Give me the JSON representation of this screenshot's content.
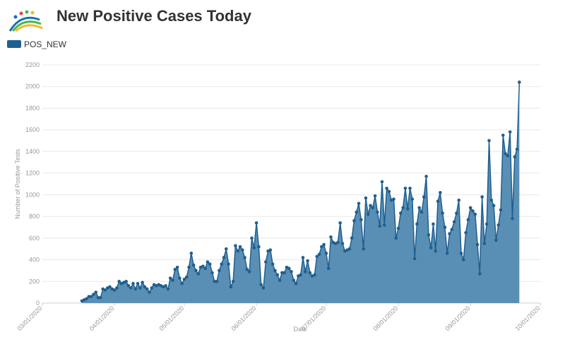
{
  "chart_data": {
    "type": "area",
    "title": "New Positive Cases Today",
    "x_label": "Date",
    "y_label": "Number of Positive Tests",
    "x": [
      "03/18/2020",
      "03/19/2020",
      "03/20/2020",
      "03/21/2020",
      "03/22/2020",
      "03/23/2020",
      "03/24/2020",
      "03/25/2020",
      "03/26/2020",
      "03/27/2020",
      "03/28/2020",
      "03/29/2020",
      "03/30/2020",
      "03/31/2020",
      "04/01/2020",
      "04/02/2020",
      "04/03/2020",
      "04/04/2020",
      "04/05/2020",
      "04/06/2020",
      "04/07/2020",
      "04/08/2020",
      "04/09/2020",
      "04/10/2020",
      "04/11/2020",
      "04/12/2020",
      "04/13/2020",
      "04/14/2020",
      "04/15/2020",
      "04/16/2020",
      "04/17/2020",
      "04/18/2020",
      "04/19/2020",
      "04/20/2020",
      "04/21/2020",
      "04/22/2020",
      "04/23/2020",
      "04/24/2020",
      "04/25/2020",
      "04/26/2020",
      "04/27/2020",
      "04/28/2020",
      "04/29/2020",
      "04/30/2020",
      "05/01/2020",
      "05/02/2020",
      "05/03/2020",
      "05/04/2020",
      "05/05/2020",
      "05/06/2020",
      "05/07/2020",
      "05/08/2020",
      "05/09/2020",
      "05/10/2020",
      "05/11/2020",
      "05/12/2020",
      "05/13/2020",
      "05/14/2020",
      "05/15/2020",
      "05/16/2020",
      "05/17/2020",
      "05/18/2020",
      "05/19/2020",
      "05/20/2020",
      "05/21/2020",
      "05/22/2020",
      "05/23/2020",
      "05/24/2020",
      "05/25/2020",
      "05/26/2020",
      "05/27/2020",
      "05/28/2020",
      "05/29/2020",
      "05/30/2020",
      "05/31/2020",
      "06/01/2020",
      "06/02/2020",
      "06/03/2020",
      "06/04/2020",
      "06/05/2020",
      "06/06/2020",
      "06/07/2020",
      "06/08/2020",
      "06/09/2020",
      "06/10/2020",
      "06/11/2020",
      "06/12/2020",
      "06/13/2020",
      "06/14/2020",
      "06/15/2020",
      "06/16/2020",
      "06/17/2020",
      "06/18/2020",
      "06/19/2020",
      "06/20/2020",
      "06/21/2020",
      "06/22/2020",
      "06/23/2020",
      "06/24/2020",
      "06/25/2020",
      "06/26/2020",
      "06/27/2020",
      "06/28/2020",
      "06/29/2020",
      "06/30/2020",
      "07/01/2020",
      "07/02/2020",
      "07/03/2020",
      "07/04/2020",
      "07/05/2020",
      "07/06/2020",
      "07/07/2020",
      "07/08/2020",
      "07/09/2020",
      "07/10/2020",
      "07/11/2020",
      "07/12/2020",
      "07/13/2020",
      "07/14/2020",
      "07/15/2020",
      "07/16/2020",
      "07/17/2020",
      "07/18/2020",
      "07/19/2020",
      "07/20/2020",
      "07/21/2020",
      "07/22/2020",
      "07/23/2020",
      "07/24/2020",
      "07/25/2020",
      "07/26/2020",
      "07/27/2020",
      "07/28/2020",
      "07/29/2020",
      "07/30/2020",
      "07/31/2020",
      "08/01/2020",
      "08/02/2020",
      "08/03/2020",
      "08/04/2020",
      "08/05/2020",
      "08/06/2020",
      "08/07/2020",
      "08/08/2020",
      "08/09/2020",
      "08/10/2020",
      "08/11/2020",
      "08/12/2020",
      "08/13/2020",
      "08/14/2020",
      "08/15/2020",
      "08/16/2020",
      "08/17/2020",
      "08/18/2020",
      "08/19/2020",
      "08/20/2020",
      "08/21/2020",
      "08/22/2020",
      "08/23/2020",
      "08/24/2020",
      "08/25/2020",
      "08/26/2020",
      "08/27/2020",
      "08/28/2020",
      "08/29/2020",
      "08/30/2020",
      "08/31/2020",
      "09/01/2020",
      "09/02/2020",
      "09/03/2020",
      "09/04/2020",
      "09/05/2020",
      "09/06/2020",
      "09/07/2020",
      "09/08/2020",
      "09/09/2020",
      "09/10/2020",
      "09/11/2020",
      "09/12/2020",
      "09/13/2020",
      "09/14/2020",
      "09/15/2020",
      "09/16/2020",
      "09/17/2020",
      "09/18/2020",
      "09/19/2020",
      "09/20/2020",
      "09/21/2020",
      "09/22/2020"
    ],
    "series": [
      {
        "name": "POS_NEW",
        "color": "#1f5f8f",
        "fill": "#5a8fb5",
        "values": [
          20,
          30,
          40,
          60,
          60,
          80,
          100,
          50,
          50,
          130,
          120,
          140,
          150,
          130,
          120,
          140,
          200,
          180,
          190,
          200,
          160,
          140,
          180,
          130,
          180,
          140,
          190,
          150,
          130,
          100,
          140,
          170,
          160,
          170,
          160,
          150,
          160,
          130,
          230,
          210,
          310,
          330,
          230,
          180,
          220,
          240,
          330,
          460,
          350,
          300,
          270,
          330,
          340,
          320,
          380,
          360,
          280,
          200,
          200,
          300,
          360,
          420,
          500,
          360,
          150,
          200,
          530,
          480,
          520,
          490,
          420,
          310,
          290,
          600,
          510,
          740,
          520,
          170,
          140,
          380,
          480,
          490,
          360,
          300,
          260,
          210,
          280,
          280,
          330,
          320,
          290,
          210,
          180,
          250,
          260,
          420,
          290,
          390,
          280,
          250,
          260,
          430,
          450,
          520,
          540,
          460,
          320,
          610,
          560,
          550,
          560,
          740,
          550,
          480,
          490,
          500,
          600,
          760,
          840,
          920,
          770,
          500,
          970,
          820,
          900,
          880,
          990,
          840,
          710,
          1120,
          720,
          1060,
          1030,
          950,
          960,
          600,
          690,
          830,
          880,
          1060,
          870,
          1060,
          960,
          410,
          730,
          880,
          840,
          980,
          1170,
          630,
          510,
          730,
          480,
          940,
          1020,
          830,
          700,
          460,
          640,
          680,
          750,
          830,
          950,
          460,
          400,
          650,
          770,
          880,
          850,
          820,
          540,
          270,
          980,
          550,
          730,
          1500,
          950,
          900,
          580,
          720,
          860,
          1550,
          1380,
          1360,
          1580,
          780,
          1350,
          1420,
          2040
        ]
      }
    ],
    "xlim": [
      "03/01/2020",
      "10/01/2020"
    ],
    "xticks": [
      "03/01/2020",
      "04/01/2020",
      "05/01/2020",
      "06/01/2020",
      "07/01/2020",
      "08/01/2020",
      "09/01/2020",
      "10/01/2020"
    ],
    "ylim": [
      0,
      2200
    ],
    "yticks": [
      0,
      200,
      400,
      600,
      800,
      1000,
      1200,
      1400,
      1600,
      1800,
      2000,
      2200
    ],
    "grid": true
  }
}
